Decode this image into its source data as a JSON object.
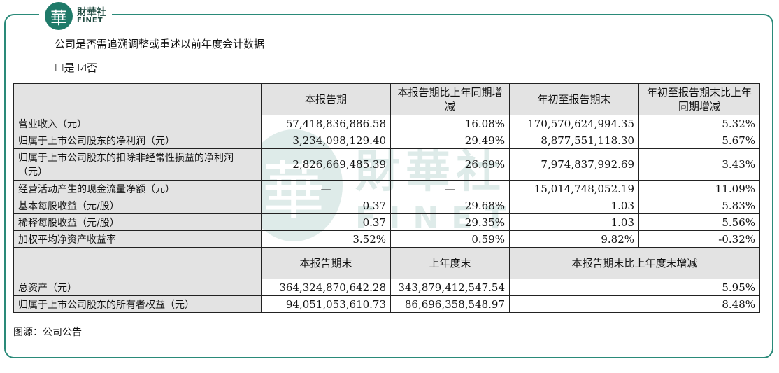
{
  "brand": {
    "cn": "財華社",
    "en": "FINET",
    "glyph": "華"
  },
  "heading": "公司是否需追溯调整或重述以前年度会计数据",
  "checkbox": {
    "yes": "☐是",
    "no": "☑否"
  },
  "table": {
    "header1": [
      "",
      "本报告期",
      "本报告期比上年同期增减",
      "年初至报告期末",
      "年初至报告期末比上年同期增减"
    ],
    "rows1": [
      [
        "营业收入（元）",
        "57,418,836,886.58",
        "16.08%",
        "170,570,624,994.35",
        "5.32%"
      ],
      [
        "归属于上市公司股东的净利润（元）",
        "3,234,098,129.40",
        "29.49%",
        "8,877,551,118.30",
        "5.67%"
      ],
      [
        "归属于上市公司股东的扣除非经常性损益的净利润（元）",
        "2,826,669,485.39",
        "26.69%",
        "7,974,837,992.69",
        "3.43%"
      ],
      [
        "经营活动产生的现金流量净额（元）",
        "—",
        "—",
        "15,014,748,052.19",
        "11.09%"
      ],
      [
        "基本每股收益（元/股）",
        "0.37",
        "29.68%",
        "1.03",
        "5.83%"
      ],
      [
        "稀释每股收益（元/股）",
        "0.37",
        "29.35%",
        "1.03",
        "5.56%"
      ],
      [
        "加权平均净资产收益率",
        "3.52%",
        "0.59%",
        "9.82%",
        "-0.32%"
      ]
    ],
    "header2": [
      "",
      "本报告期末",
      "上年度末",
      "本报告期末比上年度末增减"
    ],
    "rows2": [
      [
        "总资产（元）",
        "364,324,870,642.28",
        "343,879,412,547.54",
        "5.95%"
      ],
      [
        "归属于上市公司股东的所有者权益（元）",
        "94,051,053,610.73",
        "86,696,358,548.97",
        "8.48%"
      ]
    ]
  },
  "source": "图源：公司公告",
  "colors": {
    "frame": "#2a8a79",
    "header_bg": "#e3e3e3"
  }
}
